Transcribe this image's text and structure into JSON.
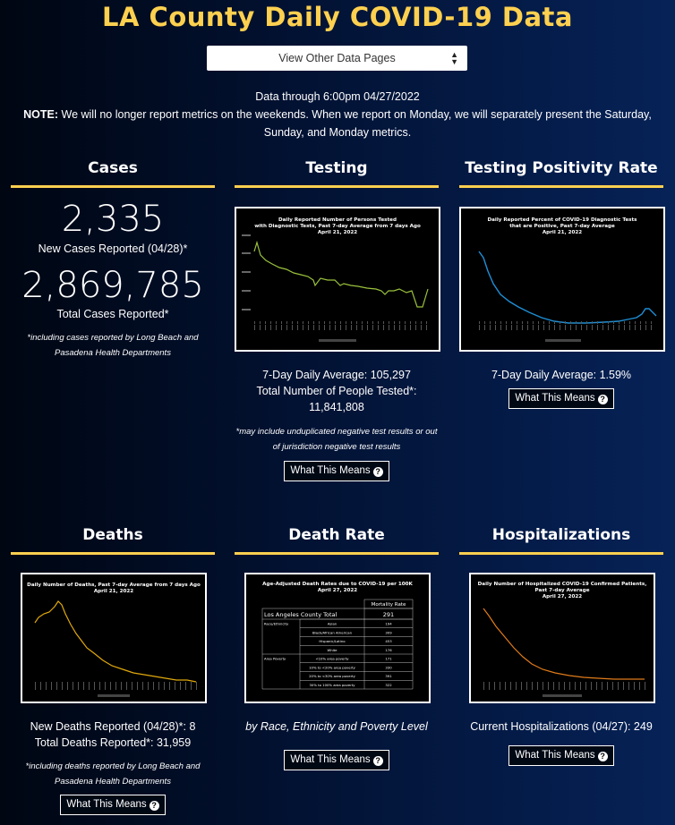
{
  "page": {
    "title": "LA County Daily COVID-19 Data",
    "select_label": "View Other Data Pages",
    "data_through": "Data through 6:00pm 04/27/2022",
    "note_label": "NOTE:",
    "note_text": " We will no longer report metrics on the weekends. When we report on Monday, we will separately present the Saturday, Sunday, and Monday metrics."
  },
  "cases": {
    "heading": "Cases",
    "new_cases": "2,335",
    "new_cases_label": "New Cases Reported (04/28)*",
    "total_cases": "2,869,785",
    "total_cases_label": "Total Cases Reported*",
    "footnote": "*including cases reported by Long Beach and Pasadena Health Departments"
  },
  "testing": {
    "heading": "Testing",
    "chart_title_1": "Daily Reported Number of Persons Tested",
    "chart_title_2": "with Diagnostic Tests, Past 7-day Average from 7 days Ago",
    "chart_title_3": "April 21, 2022",
    "avg_line": "7-Day Daily Average: 105,297",
    "total_line_1": "Total Number of People Tested*:",
    "total_line_2": "11,841,808",
    "footnote": "*may include unduplicated negative test results or out of jurisdiction negative test results",
    "button": "What This Means"
  },
  "positivity": {
    "heading": "Testing Positivity Rate",
    "chart_title_1": "Daily Reported Percent of COVID-19 Diagnostic Tests",
    "chart_title_2": "that are Positive, Past 7-day Average",
    "chart_title_3": "April 21, 2022",
    "avg_line": "7-Day Daily Average: 1.59%",
    "button": "What This Means"
  },
  "deaths": {
    "heading": "Deaths",
    "chart_title_1": "Daily Number of Deaths, Past 7-day Average from 7 days Ago",
    "chart_title_2": "April 21, 2022",
    "new_line": "New Deaths Reported (04/28)*: 8",
    "total_line": "Total Deaths Reported*: 31,959",
    "footnote": "*including deaths reported by Long Beach and Pasadena Health Departments",
    "button": "What This Means"
  },
  "death_rate": {
    "heading": "Death Rate",
    "chart_title_1": "Age-Adjusted Death Rates due to COVID-19 per 100K",
    "chart_title_2": "April 27, 2022",
    "table_header": "Mortality Rate",
    "total_label": "Los Angeles County Total",
    "total_value": "291",
    "rows": [
      {
        "group": "Race/Ethnicity",
        "label": "Asian",
        "value": "194"
      },
      {
        "group": "",
        "label": "Black/African American",
        "value": "309"
      },
      {
        "group": "",
        "label": "Hispanic/Latino",
        "value": "453"
      },
      {
        "group": "",
        "label": "White",
        "value": "176"
      },
      {
        "group": "Area Poverty",
        "label": "<10% area poverty",
        "value": "171"
      },
      {
        "group": "",
        "label": "10% to <20% area poverty",
        "value": "330"
      },
      {
        "group": "",
        "label": "20% to <30% area poverty",
        "value": "391"
      },
      {
        "group": "",
        "label": "30% to 100% area poverty",
        "value": "322"
      }
    ],
    "caption": "by Race, Ethnicity and Poverty Level",
    "button": "What This Means"
  },
  "hospitalizations": {
    "heading": "Hospitalizations",
    "chart_title_1": "Daily Number of Hospitalized COVID-19 Confirmed Patients,",
    "chart_title_2": "Past 7-day Average",
    "chart_title_3": "April 27, 2022",
    "current_line": "Current Hospitalizations (04/27): 249",
    "button": "What This Means"
  },
  "colors": {
    "accent": "#fdd04f",
    "testing_line": "#9ac23c",
    "positivity_line": "#1e8fd6",
    "deaths_line": "#e0a80c",
    "hospital_line": "#e07b1a"
  }
}
